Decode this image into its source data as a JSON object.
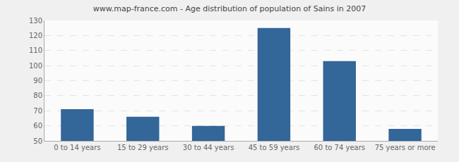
{
  "chart_data": {
    "type": "bar",
    "title": "www.map-france.com - Age distribution of population of Sains in 2007",
    "categories": [
      "0 to 14 years",
      "15 to 29 years",
      "30 to 44 years",
      "45 to 59 years",
      "60 to 74 years",
      "75 years or more"
    ],
    "values": [
      71,
      66,
      60,
      125,
      103,
      58
    ],
    "color": "#336699",
    "ylim": [
      50,
      130
    ],
    "yticks": [
      50,
      60,
      70,
      80,
      90,
      100,
      110,
      120,
      130
    ],
    "grid": true
  }
}
